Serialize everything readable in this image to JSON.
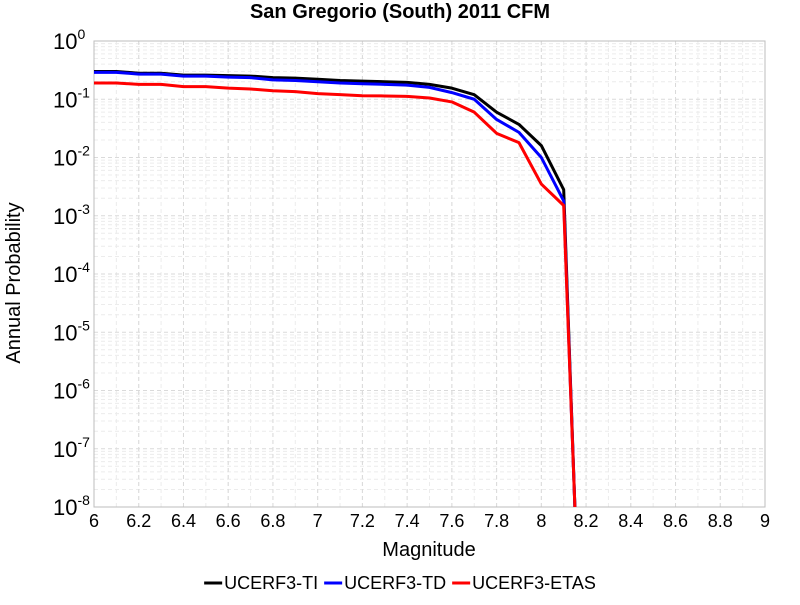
{
  "chart_data": {
    "type": "line",
    "title": "San Gregorio (South) 2011 CFM",
    "xlabel": "Magnitude",
    "ylabel": "Annual Probability",
    "xlim": [
      6,
      9
    ],
    "ylim": [
      1e-08,
      1
    ],
    "yscale": "log",
    "grid": true,
    "legend_position": "bottom",
    "x_ticks": [
      "6",
      "6.2",
      "6.4",
      "6.6",
      "6.8",
      "7",
      "7.2",
      "7.4",
      "7.6",
      "7.8",
      "8",
      "8.2",
      "8.4",
      "8.6",
      "8.8",
      "9"
    ],
    "y_ticks": [
      {
        "base": "10",
        "exp": "0"
      },
      {
        "base": "10",
        "exp": "-1"
      },
      {
        "base": "10",
        "exp": "-2"
      },
      {
        "base": "10",
        "exp": "-3"
      },
      {
        "base": "10",
        "exp": "-4"
      },
      {
        "base": "10",
        "exp": "-5"
      },
      {
        "base": "10",
        "exp": "-6"
      },
      {
        "base": "10",
        "exp": "-7"
      },
      {
        "base": "10",
        "exp": "-8"
      }
    ],
    "series": [
      {
        "name": "UCERF3-TI",
        "color": "#000000",
        "points": [
          [
            6.0,
            0.3
          ],
          [
            6.1,
            0.3
          ],
          [
            6.2,
            0.28
          ],
          [
            6.3,
            0.28
          ],
          [
            6.4,
            0.26
          ],
          [
            6.5,
            0.26
          ],
          [
            6.6,
            0.255
          ],
          [
            6.7,
            0.25
          ],
          [
            6.8,
            0.235
          ],
          [
            6.9,
            0.23
          ],
          [
            7.0,
            0.22
          ],
          [
            7.1,
            0.21
          ],
          [
            7.2,
            0.205
          ],
          [
            7.3,
            0.2
          ],
          [
            7.4,
            0.195
          ],
          [
            7.5,
            0.18
          ],
          [
            7.6,
            0.155
          ],
          [
            7.7,
            0.12
          ],
          [
            7.8,
            0.06
          ],
          [
            7.9,
            0.037
          ],
          [
            8.0,
            0.016
          ],
          [
            8.1,
            0.0028
          ],
          [
            8.15,
            1e-08
          ]
        ]
      },
      {
        "name": "UCERF3-TD",
        "color": "#0000ff",
        "points": [
          [
            6.0,
            0.29
          ],
          [
            6.1,
            0.29
          ],
          [
            6.2,
            0.27
          ],
          [
            6.3,
            0.27
          ],
          [
            6.4,
            0.25
          ],
          [
            6.5,
            0.25
          ],
          [
            6.6,
            0.24
          ],
          [
            6.7,
            0.235
          ],
          [
            6.8,
            0.215
          ],
          [
            6.9,
            0.21
          ],
          [
            7.0,
            0.2
          ],
          [
            7.1,
            0.19
          ],
          [
            7.2,
            0.185
          ],
          [
            7.3,
            0.18
          ],
          [
            7.4,
            0.175
          ],
          [
            7.5,
            0.16
          ],
          [
            7.6,
            0.13
          ],
          [
            7.7,
            0.1
          ],
          [
            7.8,
            0.045
          ],
          [
            7.9,
            0.027
          ],
          [
            8.0,
            0.01
          ],
          [
            8.1,
            0.0018
          ],
          [
            8.15,
            1e-08
          ]
        ]
      },
      {
        "name": "UCERF3-ETAS",
        "color": "#ff0000",
        "points": [
          [
            6.0,
            0.19
          ],
          [
            6.1,
            0.19
          ],
          [
            6.2,
            0.18
          ],
          [
            6.3,
            0.18
          ],
          [
            6.4,
            0.165
          ],
          [
            6.5,
            0.165
          ],
          [
            6.6,
            0.155
          ],
          [
            6.7,
            0.15
          ],
          [
            6.8,
            0.14
          ],
          [
            6.9,
            0.135
          ],
          [
            7.0,
            0.125
          ],
          [
            7.1,
            0.12
          ],
          [
            7.2,
            0.115
          ],
          [
            7.3,
            0.114
          ],
          [
            7.4,
            0.112
          ],
          [
            7.5,
            0.105
          ],
          [
            7.6,
            0.09
          ],
          [
            7.7,
            0.06
          ],
          [
            7.8,
            0.026
          ],
          [
            7.9,
            0.018
          ],
          [
            8.0,
            0.0035
          ],
          [
            8.1,
            0.0015
          ],
          [
            8.15,
            1e-08
          ]
        ]
      }
    ]
  }
}
